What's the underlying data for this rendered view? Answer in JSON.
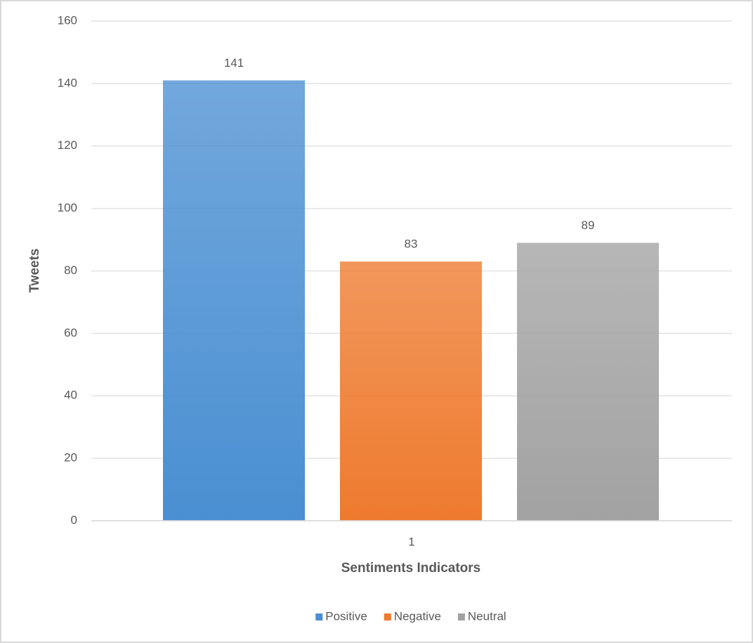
{
  "chart_data": {
    "type": "bar",
    "x_label": "Sentiments Indicators",
    "y_label": "Tweets",
    "categories": [
      "1"
    ],
    "series": [
      {
        "name": "Positive",
        "color": "#4a8fd2",
        "values": [
          141
        ]
      },
      {
        "name": "Negative",
        "color": "#ee7a2e",
        "values": [
          83
        ]
      },
      {
        "name": "Neutral",
        "color": "#a2a2a2",
        "values": [
          89
        ]
      }
    ],
    "ylim": [
      0,
      160
    ],
    "yticks": [
      0,
      20,
      40,
      60,
      80,
      100,
      120,
      140,
      160
    ],
    "grid": true,
    "legend": "bottom"
  }
}
